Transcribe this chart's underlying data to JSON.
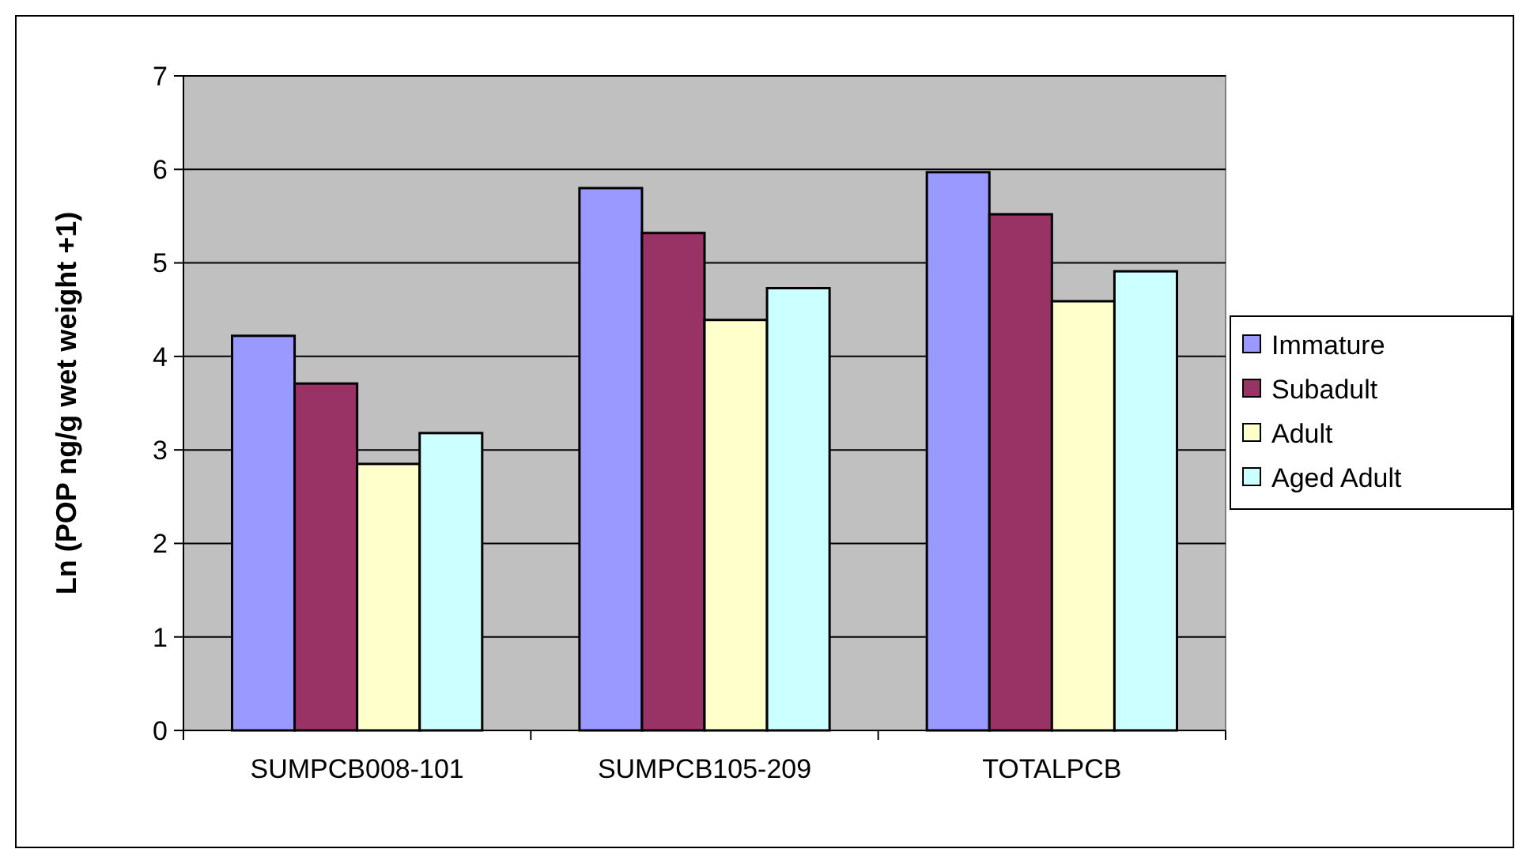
{
  "chart_data": {
    "type": "bar",
    "ylabel": "Ln (POP ng/g wet weight +1)",
    "categories": [
      "SUMPCB008-101",
      "SUMPCB105-209",
      "TOTALPCB"
    ],
    "series": [
      {
        "name": "Immature",
        "color": "#9999ff",
        "values": [
          4.22,
          5.8,
          5.97
        ]
      },
      {
        "name": "Subadult",
        "color": "#993366",
        "values": [
          3.71,
          5.32,
          5.52
        ]
      },
      {
        "name": "Adult",
        "color": "#ffffcc",
        "values": [
          2.85,
          4.39,
          4.59
        ]
      },
      {
        "name": "Aged Adult",
        "color": "#ccffff",
        "values": [
          3.18,
          4.73,
          4.91
        ]
      }
    ],
    "ylim": [
      0,
      7
    ],
    "yticks": [
      0,
      1,
      2,
      3,
      4,
      5,
      6,
      7
    ],
    "grid": "y",
    "legend": "right"
  }
}
